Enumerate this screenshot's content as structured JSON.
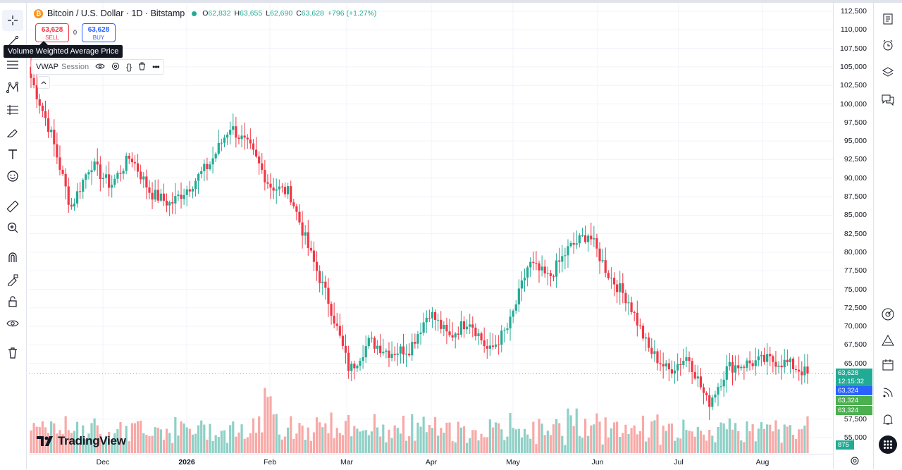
{
  "header": {
    "symbol": "Bitcoin / U.S. Dollar · 1D · Bitstamp",
    "coin_glyph": "₿",
    "open_label": "O",
    "open": "62,832",
    "high_label": "H",
    "high": "63,655",
    "low_label": "L",
    "low": "62,690",
    "close_label": "C",
    "close": "63,628",
    "change": "+796 (+1.27%)"
  },
  "trade": {
    "sell_price": "63,628",
    "sell_label": "SELL",
    "buy_price": "63,628",
    "buy_label": "BUY",
    "spread": "0"
  },
  "tooltip": {
    "text": "Volume Weighted Average Price"
  },
  "indicator": {
    "name": "VWAP",
    "session": "Session"
  },
  "logo": {
    "text": "TradingView"
  },
  "price_tags": {
    "last": "63,628",
    "countdown": "12:15:32",
    "vwap_blue": "63,324",
    "vwap_green_1": "63,324",
    "vwap_green_2": "63,324",
    "volume": "875"
  },
  "colors": {
    "up": "#22ab94",
    "down": "#f23645",
    "vol_up": "#8fd0c6",
    "vol_down": "#f7a9a7",
    "accent_blue": "#2962ff",
    "vwap_green": "#4caf50"
  },
  "icons": {
    "left": [
      "crosshair-icon",
      "trend-line-icon",
      "fib-retracement-icon",
      "pattern-icon",
      "long-position-icon",
      "brush-icon",
      "text-icon",
      "emoji-icon",
      "ruler-icon",
      "zoom-in-icon",
      "magnet-icon",
      "lock-drawing-icon",
      "unlock-icon",
      "eye-icon",
      "trash-icon"
    ],
    "right": [
      "watchlist-icon",
      "alerts-clock-icon",
      "layers-icon",
      "chat-icon",
      "target-icon",
      "triangle-icon",
      "calendar-icon",
      "broadcast-icon",
      "bell-icon",
      "grid-apps-icon"
    ]
  },
  "chart_data": {
    "type": "candlestick",
    "title": "Bitcoin / U.S. Dollar · 1D · Bitstamp",
    "y_ticks": [
      "112,500",
      "110,000",
      "107,500",
      "105,000",
      "102,500",
      "100,000",
      "97,500",
      "95,000",
      "92,500",
      "90,000",
      "87,500",
      "85,000",
      "82,500",
      "80,000",
      "77,500",
      "75,000",
      "72,500",
      "70,000",
      "67,500",
      "65,000",
      "57,500",
      "55,000"
    ],
    "x_ticks": [
      "Dec",
      "2026",
      "Feb",
      "Mar",
      "Apr",
      "May",
      "Jun",
      "Jul",
      "Aug"
    ],
    "ylim": [
      53500,
      113000
    ],
    "last_price": 63628,
    "close_path_approx": {
      "dates": [
        "Nov 20",
        "Nov 25",
        "Nov 30",
        "Dec 5",
        "Dec 10",
        "Dec 15",
        "Dec 20",
        "Dec 25",
        "Dec 30",
        "Jan 5",
        "Jan 10",
        "Jan 14",
        "Jan 20",
        "Jan 25",
        "Jan 31",
        "Feb 5",
        "Feb 6",
        "Feb 10",
        "Feb 20",
        "Feb 28",
        "Mar 5",
        "Mar 15",
        "Mar 25",
        "Apr 1",
        "Apr 10",
        "Apr 20",
        "Apr 28",
        "May 5",
        "May 10",
        "May 20",
        "May 31",
        "Jun 5",
        "Jun 10",
        "Jun 20",
        "Jul 1",
        "Jul 10",
        "Jul 20",
        "Aug 1",
        "Aug 10",
        "Aug 15"
      ],
      "values": [
        103500,
        96000,
        86000,
        92000,
        89000,
        93000,
        88000,
        86500,
        89000,
        92000,
        97000,
        94000,
        89000,
        88000,
        80000,
        73000,
        64000,
        68000,
        66500,
        67000,
        72000,
        68500,
        71000,
        66500,
        70000,
        78500,
        76500,
        80500,
        82500,
        77000,
        73500,
        67000,
        64000,
        66000,
        59500,
        64500,
        65000,
        65500,
        65000,
        63628
      ]
    },
    "volume_note": "volume histogram at bottom; last volume label 875"
  }
}
